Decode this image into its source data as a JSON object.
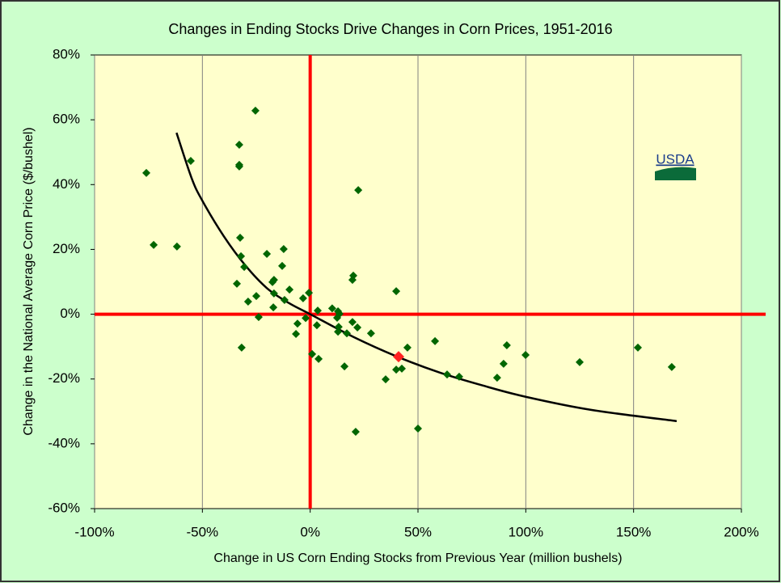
{
  "chart_data": {
    "type": "scatter",
    "title": "Changes in Ending Stocks Drive Changes in Corn Prices, 1951-2016",
    "xlabel": "Change in US Corn Ending Stocks from Previous Year (million bushels)",
    "ylabel": "Change in the National Average Corn Price ($/bushel)",
    "logo": "USDA",
    "color": "#006600",
    "x": [
      -76.0,
      -72.6,
      -61.8,
      -55.4,
      -25.4,
      -32.9,
      -32.9,
      -32.9,
      -32.5,
      -32.1,
      -30.6,
      -34.0,
      -31.8,
      -28.8,
      -25.0,
      -23.9,
      -20.1,
      -17.5,
      -16.8,
      -16.8,
      -17.1,
      -12.3,
      -13.0,
      -11.9,
      -9.6,
      -3.3,
      -0.6,
      -5.9,
      -6.6,
      -2.1,
      0.9,
      3.5,
      3.1,
      3.9,
      10.2,
      12.5,
      12.9,
      13.2,
      12.9,
      17.0,
      15.9,
      13.6,
      19.6,
      20.0,
      19.6,
      21.9,
      22.3,
      21.1,
      28.2,
      35.0,
      39.9,
      39.9,
      42.5,
      45.1,
      50.0,
      57.9,
      63.5,
      69.1,
      86.7,
      89.7,
      91.2,
      99.9,
      125.0,
      152.0,
      167.7
    ],
    "y": [
      43.6,
      21.4,
      20.9,
      47.3,
      62.8,
      52.3,
      46.1,
      45.6,
      23.6,
      17.9,
      14.6,
      9.4,
      -10.3,
      3.9,
      5.6,
      -0.9,
      18.6,
      9.9,
      10.6,
      6.4,
      2.1,
      20.1,
      14.9,
      4.4,
      7.6,
      4.9,
      6.6,
      -2.9,
      -6.1,
      -1.2,
      -12.3,
      1.1,
      -3.4,
      -13.8,
      1.8,
      -1.1,
      0.9,
      -3.9,
      -5.4,
      -5.9,
      -16.1,
      0.1,
      10.6,
      11.9,
      -2.4,
      -4.1,
      38.3,
      -36.3,
      -5.9,
      -20.1,
      7.1,
      -17.1,
      -16.8,
      -10.3,
      -35.3,
      -8.3,
      -18.6,
      -19.3,
      -19.6,
      -15.3,
      -9.6,
      -12.6,
      -14.8,
      -10.3,
      -16.3
    ],
    "highlight": {
      "x": 41.0,
      "y": -13.1,
      "color": "#ff2222"
    },
    "trend": {
      "color": "#000000",
      "x": [
        -62,
        -55,
        -50,
        -40,
        -30,
        -20,
        -10,
        0,
        20,
        40,
        60,
        80,
        100,
        130,
        170
      ],
      "y": [
        56,
        42,
        35,
        24,
        15,
        8,
        3.5,
        0,
        -7,
        -13,
        -18,
        -22,
        -25.5,
        -29.5,
        -33
      ]
    },
    "reference_lines": {
      "x": 0,
      "y": 0,
      "color": "#ff0000"
    },
    "grid": "x",
    "xlim": [
      -100,
      200
    ],
    "xticks": [
      {
        "value": -100,
        "label": "-100%"
      },
      {
        "value": -50,
        "label": "-50%"
      },
      {
        "value": 0,
        "label": "0%"
      },
      {
        "value": 50,
        "label": "50%"
      },
      {
        "value": 100,
        "label": "100%"
      },
      {
        "value": 150,
        "label": "150%"
      },
      {
        "value": 200,
        "label": "200%"
      }
    ],
    "ylim": [
      -60,
      80
    ],
    "yticks": [
      {
        "value": -60,
        "label": "-60%"
      },
      {
        "value": -40,
        "label": "-40%"
      },
      {
        "value": -20,
        "label": "-20%"
      },
      {
        "value": 0,
        "label": "0%"
      },
      {
        "value": 20,
        "label": "20%"
      },
      {
        "value": 40,
        "label": "40%"
      },
      {
        "value": 60,
        "label": "60%"
      },
      {
        "value": 80,
        "label": "80%"
      }
    ]
  }
}
